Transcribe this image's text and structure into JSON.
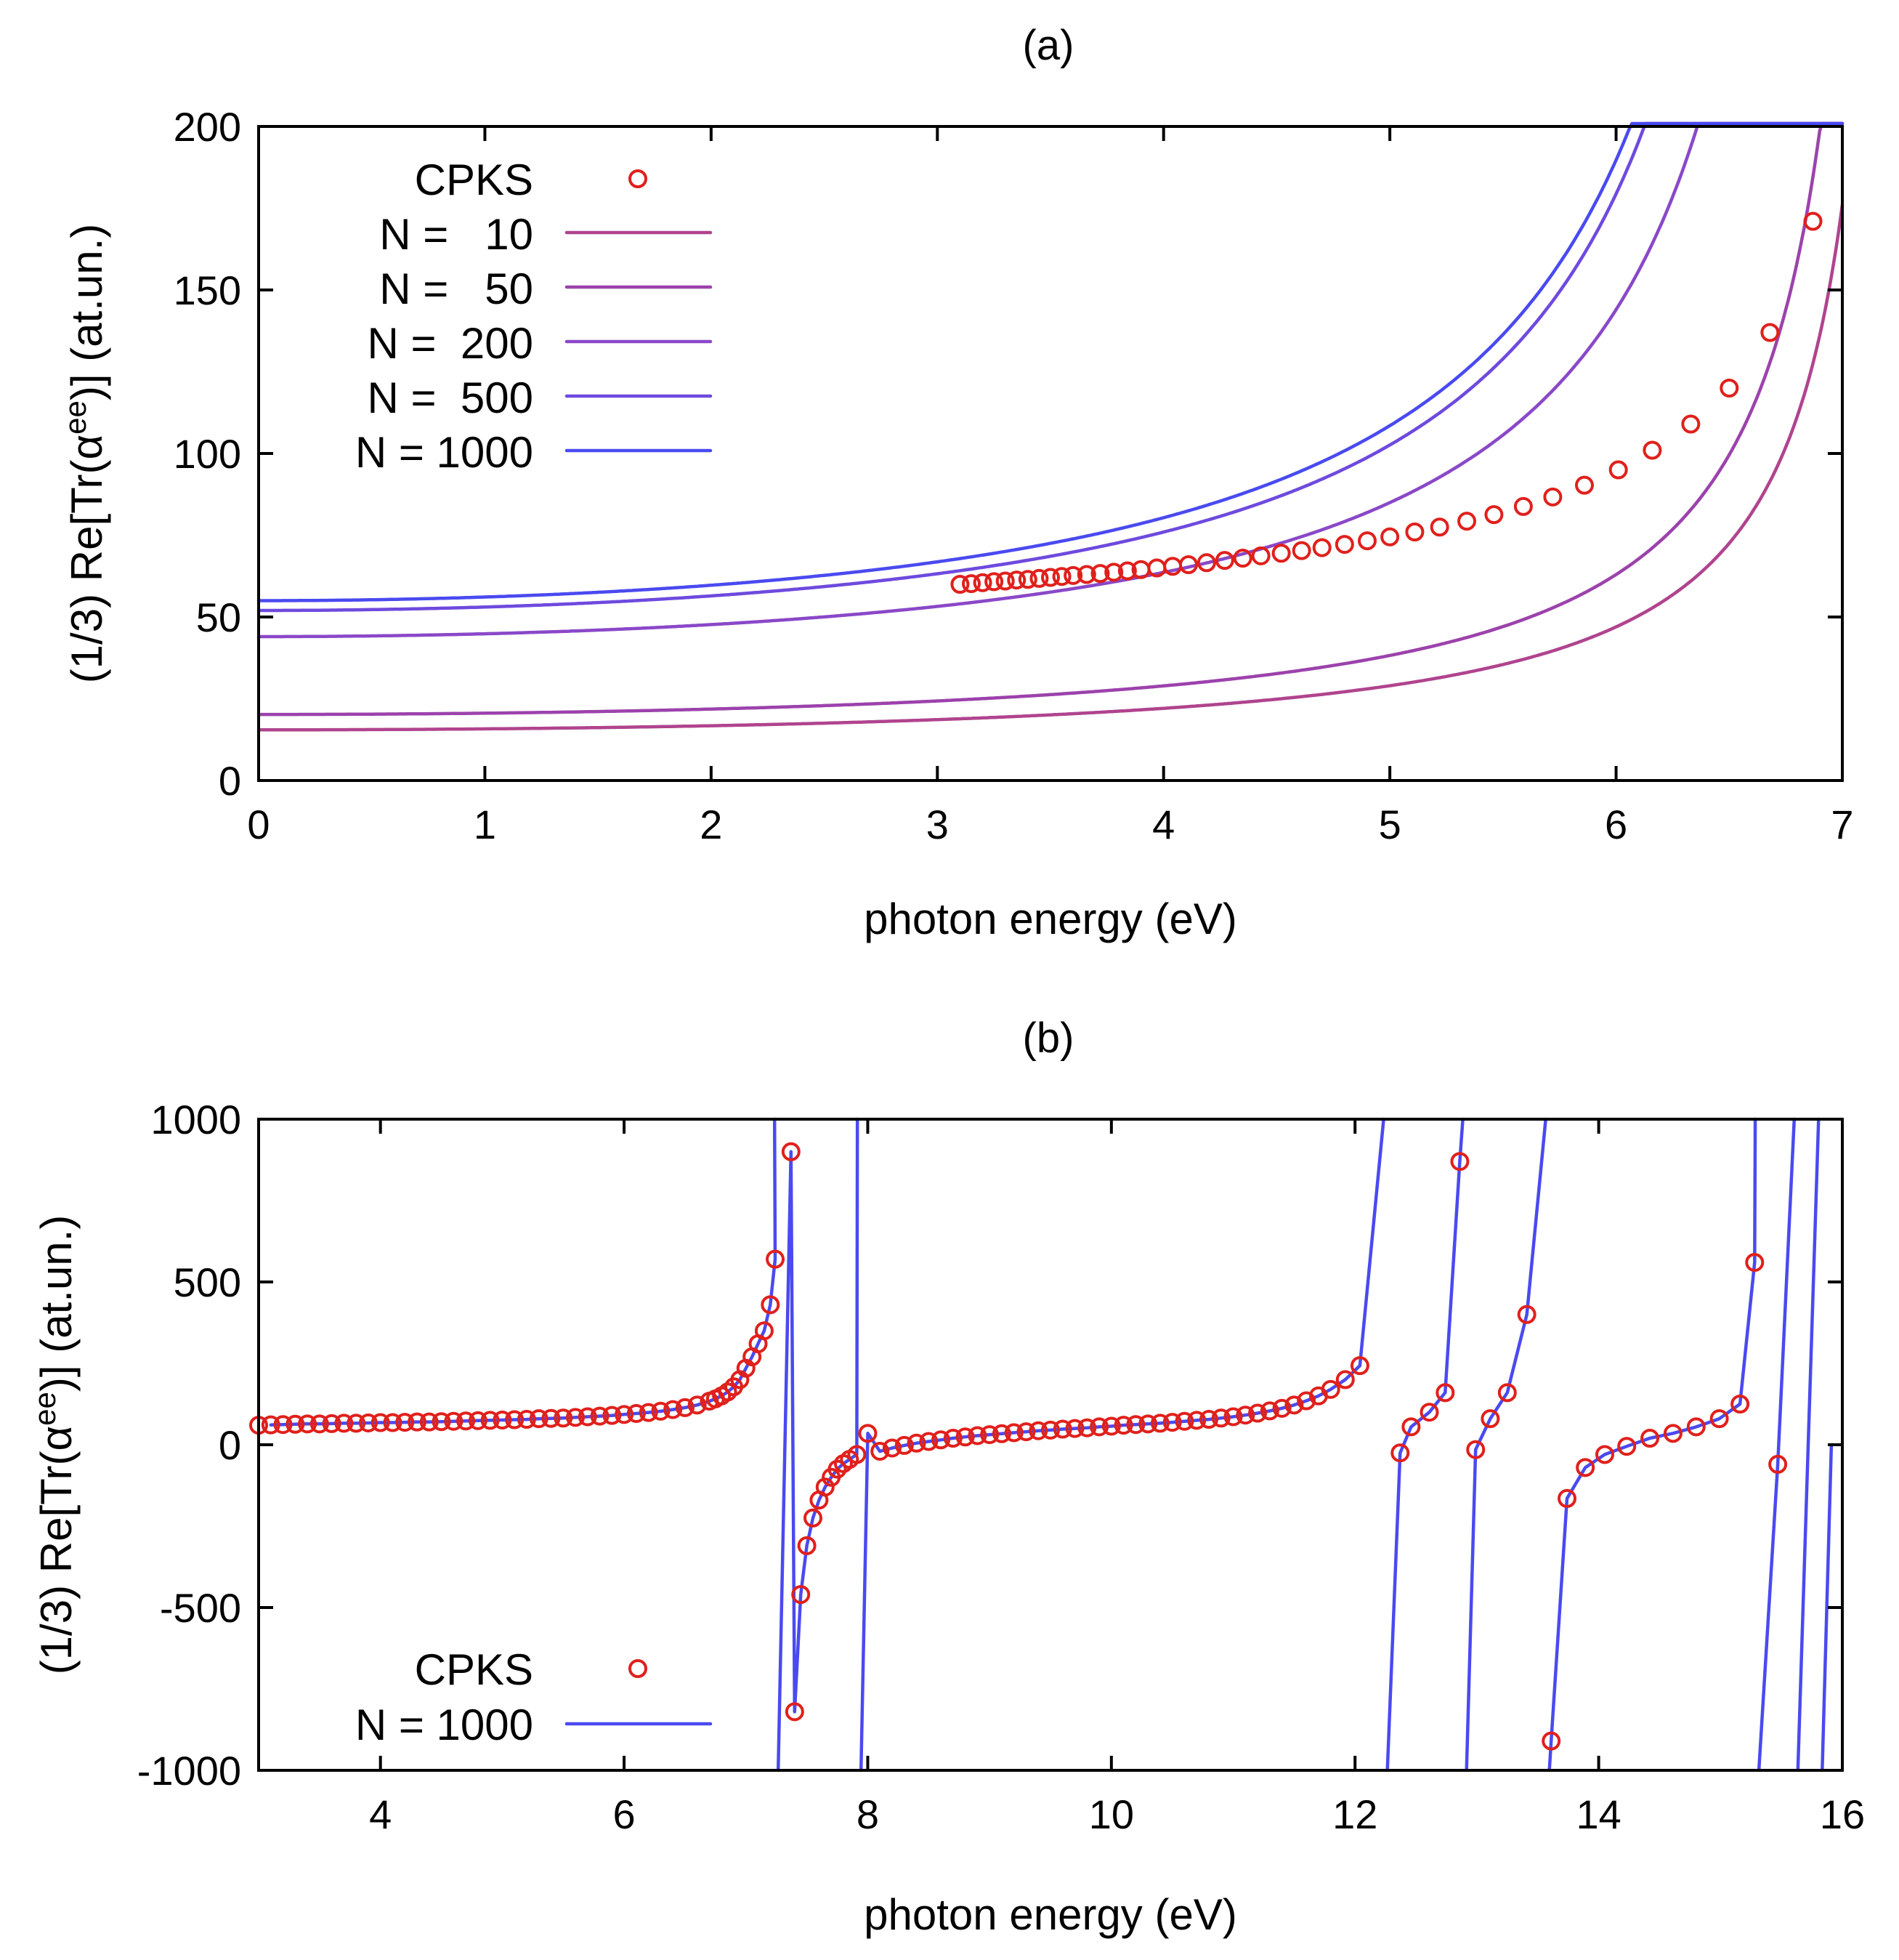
{
  "colors": {
    "cpks": "#e0201c",
    "n10": "#b0448e",
    "n50": "#9c42ac",
    "n200": "#8a48c8",
    "n500": "#6e4ade",
    "n1000": "#4a4af0"
  },
  "chart_data": [
    {
      "type": "line",
      "title": "(a)",
      "xlabel": "photon energy (eV)",
      "ylabel_main": "(1/3) Re[Tr(α",
      "ylabel_sup": "ee",
      "ylabel_end": ")] (at.un.)",
      "xlim": [
        0,
        7
      ],
      "ylim": [
        0,
        200
      ],
      "xticks": [
        0,
        1,
        2,
        3,
        4,
        5,
        6,
        7
      ],
      "yticks": [
        0,
        50,
        100,
        150,
        200
      ],
      "legend": [
        {
          "label": "CPKS",
          "key": "cpks",
          "kind": "points"
        },
        {
          "label": "N =   10",
          "key": "n10",
          "kind": "line"
        },
        {
          "label": "N =   50",
          "key": "n50",
          "kind": "line"
        },
        {
          "label": "N =  200",
          "key": "n200",
          "kind": "line"
        },
        {
          "label": "N =  500",
          "key": "n500",
          "kind": "line"
        },
        {
          "label": "N = 1000",
          "key": "n1000",
          "kind": "line"
        }
      ],
      "series": [
        {
          "name": "N = 10",
          "key": "n10",
          "a0": 15.5,
          "pole": 7.33
        },
        {
          "name": "N = 50",
          "key": "n50",
          "a0": 20.2,
          "pole": 7.28
        },
        {
          "name": "N = 200",
          "key": "n200",
          "a0": 44.0,
          "pole": 7.2
        },
        {
          "name": "N = 500",
          "key": "n500",
          "a0": 52.0,
          "pole": 7.12
        },
        {
          "name": "N = 1000",
          "key": "n1000",
          "a0": 55.0,
          "pole": 7.12
        }
      ],
      "cpks": {
        "x": [
          3.1,
          3.15,
          3.2,
          3.25,
          3.3,
          3.35,
          3.4,
          3.45,
          3.5,
          3.55,
          3.6,
          3.66,
          3.72,
          3.78,
          3.84,
          3.9,
          3.97,
          4.04,
          4.11,
          4.19,
          4.27,
          4.35,
          4.43,
          4.52,
          4.61,
          4.7,
          4.8,
          4.9,
          5.0,
          5.11,
          5.22,
          5.34,
          5.46,
          5.59,
          5.72,
          5.86,
          6.01,
          6.16,
          6.33,
          6.5,
          6.68,
          6.87
        ],
        "y": [
          60.0,
          60.2,
          60.5,
          60.8,
          61.0,
          61.3,
          61.5,
          61.8,
          62.1,
          62.4,
          62.7,
          63.0,
          63.3,
          63.7,
          64.1,
          64.5,
          65.0,
          65.5,
          66.0,
          66.6,
          67.3,
          68.0,
          68.7,
          69.5,
          70.3,
          71.2,
          72.2,
          73.3,
          74.5,
          76.0,
          77.5,
          79.3,
          81.3,
          83.8,
          86.7,
          90.3,
          95.0,
          101.0,
          109.0,
          120.0,
          137.0,
          171.0
        ]
      }
    },
    {
      "type": "line",
      "title": "(b)",
      "xlabel": "photon energy (eV)",
      "ylabel_main": "(1/3) Re[Tr(α",
      "ylabel_sup": "ee",
      "ylabel_end": ")] (at.un.)",
      "xlim": [
        3,
        16
      ],
      "ylim": [
        -1000,
        1000
      ],
      "xticks": [
        4,
        6,
        8,
        10,
        12,
        14,
        16
      ],
      "yticks": [
        -1000,
        -500,
        0,
        500,
        1000
      ],
      "legend": [
        {
          "label": "CPKS",
          "key": "cpks",
          "kind": "points"
        },
        {
          "label": "N = 1000",
          "key": "n1000",
          "kind": "line"
        }
      ],
      "poles": [
        7.25,
        7.93,
        12.25,
        12.9,
        13.58,
        15.3,
        15.62,
        15.82
      ],
      "cpks": {
        "x": [
          3.0,
          3.1,
          3.2,
          3.3,
          3.4,
          3.5,
          3.6,
          3.7,
          3.8,
          3.9,
          4.0,
          4.1,
          4.2,
          4.3,
          4.4,
          4.5,
          4.6,
          4.7,
          4.8,
          4.9,
          5.0,
          5.1,
          5.2,
          5.3,
          5.4,
          5.5,
          5.6,
          5.7,
          5.8,
          5.9,
          6.0,
          6.1,
          6.2,
          6.3,
          6.4,
          6.5,
          6.6,
          6.7,
          6.75,
          6.8,
          6.85,
          6.9,
          6.95,
          7.0,
          7.05,
          7.1,
          7.15,
          7.2,
          7.24,
          7.37,
          7.4,
          7.45,
          7.5,
          7.55,
          7.6,
          7.65,
          7.7,
          7.75,
          7.8,
          7.85,
          7.91,
          8.0,
          8.1,
          8.2,
          8.3,
          8.4,
          8.5,
          8.6,
          8.7,
          8.8,
          8.9,
          9.0,
          9.1,
          9.2,
          9.3,
          9.4,
          9.5,
          9.6,
          9.7,
          9.8,
          9.9,
          10.0,
          10.1,
          10.2,
          10.3,
          10.4,
          10.5,
          10.6,
          10.7,
          10.8,
          10.9,
          11.0,
          11.1,
          11.2,
          11.3,
          11.4,
          11.5,
          11.6,
          11.7,
          11.8,
          11.92,
          12.04,
          12.37,
          12.46,
          12.61,
          12.74,
          12.86,
          12.99,
          13.11,
          13.25,
          13.41,
          13.61,
          13.74,
          13.89,
          14.05,
          14.23,
          14.42,
          14.61,
          14.8,
          14.99,
          15.16,
          15.28,
          15.47
        ],
        "y": [
          60,
          61,
          62,
          63,
          64,
          64,
          65,
          66,
          66,
          67,
          68,
          68,
          69,
          70,
          70,
          71,
          72,
          73,
          74,
          75,
          76,
          77,
          78,
          80,
          81,
          82,
          84,
          86,
          88,
          90,
          93,
          96,
          99,
          103,
          108,
          114,
          122,
          134,
          141,
          150,
          162,
          178,
          200,
          235,
          270,
          310,
          350,
          430,
          570,
          900,
          -820,
          -460,
          -310,
          -225,
          -170,
          -130,
          -100,
          -75,
          -58,
          -45,
          -30,
          35,
          -20,
          -10,
          -2,
          5,
          10,
          15,
          20,
          24,
          28,
          31,
          34,
          37,
          40,
          43,
          45,
          48,
          50,
          52,
          55,
          57,
          60,
          62,
          64,
          66,
          69,
          72,
          75,
          78,
          82,
          86,
          91,
          97,
          104,
          112,
          122,
          135,
          150,
          170,
          200,
          243,
          -25,
          55,
          100,
          160,
          870,
          -15,
          80,
          160,
          400,
          -910,
          -165,
          -70,
          -30,
          -5,
          20,
          35,
          55,
          80,
          125,
          560,
          -60
        ]
      }
    }
  ]
}
